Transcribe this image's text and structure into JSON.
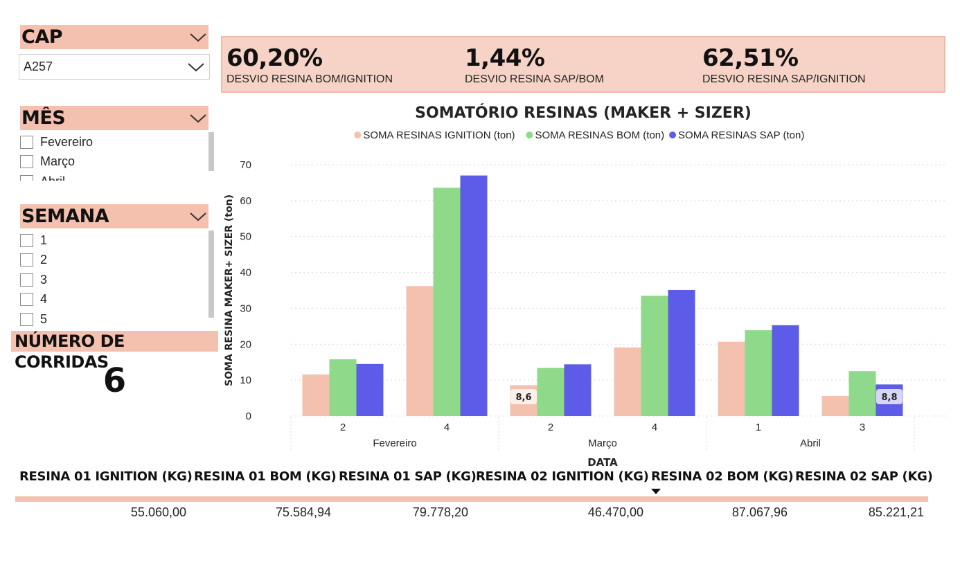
{
  "filters": {
    "cap": {
      "title": "CAP",
      "selected": "A257"
    },
    "mes": {
      "title": "MÊS",
      "items": [
        "Fevereiro",
        "Março",
        "Abril"
      ]
    },
    "semana": {
      "title": "SEMANA",
      "items": [
        "1",
        "2",
        "3",
        "4",
        "5"
      ]
    }
  },
  "corridas": {
    "title": "NÚMERO DE CORRIDAS",
    "value": "6"
  },
  "kpis": [
    {
      "value": "60,20%",
      "label": "DESVIO RESINA BOM/IGNITION"
    },
    {
      "value": "1,44%",
      "label": "DESVIO RESINA SAP/BOM"
    },
    {
      "value": "62,51%",
      "label": "DESVIO RESINA SAP/IGNITION"
    }
  ],
  "colors": {
    "ignition": "#f4c1af",
    "bom": "#8fd98a",
    "sap": "#5c5ce8",
    "accent": "#f4c1af"
  },
  "chart_data": {
    "type": "bar",
    "title": "SOMATÓRIO RESINAS (MAKER + SIZER)",
    "xlabel": "DATA",
    "ylabel": "SOMA RESINA MAKER+ SIZER (ton)",
    "ylim": [
      0,
      70
    ],
    "yticks": [
      0,
      10,
      20,
      30,
      40,
      50,
      60,
      70
    ],
    "grid": true,
    "legend": "top-center",
    "categories": [
      "2",
      "4",
      "2",
      "4",
      "1",
      "3"
    ],
    "groups": [
      {
        "label": "Fevereiro",
        "count": 2
      },
      {
        "label": "Março",
        "count": 2
      },
      {
        "label": "Abril",
        "count": 2
      }
    ],
    "series": [
      {
        "name": "SOMA RESINAS IGNITION (ton)",
        "values": [
          11.6,
          36.2,
          8.6,
          19.1,
          20.7,
          5.6
        ]
      },
      {
        "name": "SOMA RESINAS BOM (ton)",
        "values": [
          15.8,
          63.6,
          13.4,
          33.5,
          23.9,
          12.5
        ]
      },
      {
        "name": "SOMA RESINAS SAP (ton)",
        "values": [
          14.5,
          67.0,
          14.4,
          35.1,
          25.3,
          8.8
        ]
      }
    ],
    "data_labels": [
      {
        "series": 0,
        "index": 2,
        "text": "8,6"
      },
      {
        "series": 2,
        "index": 5,
        "text": "8,8"
      }
    ]
  },
  "table": {
    "columns": [
      "RESINA 01 IGNITION (KG)",
      "RESINA 01 BOM (KG)",
      "RESINA 01 SAP (KG)",
      "RESINA 02 IGNITION (KG)",
      "RESINA 02 BOM (KG)",
      "RESINA 02 SAP (KG)"
    ],
    "row": [
      "55.060,00",
      "75.584,94",
      "79.778,20",
      "46.470,00",
      "87.067,96",
      "85.221,21"
    ]
  }
}
